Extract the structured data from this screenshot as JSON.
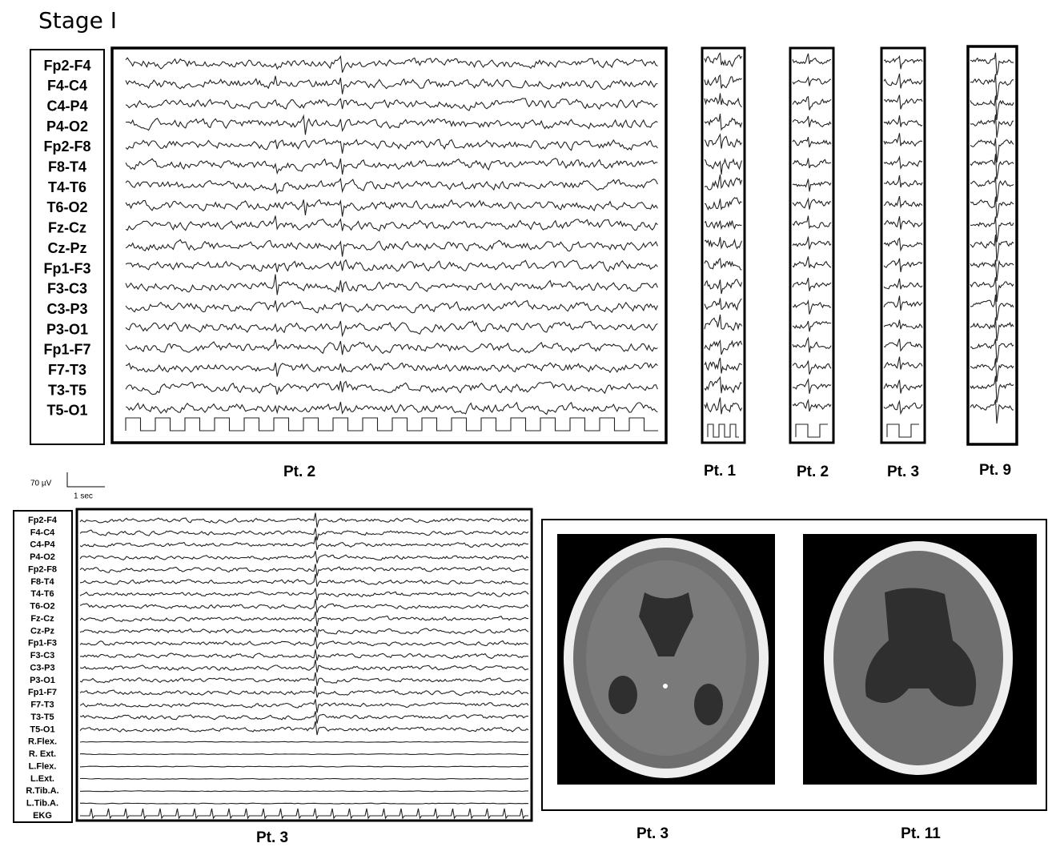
{
  "title": "Stage I",
  "top_panel": {
    "channels": [
      "Fp2-F4",
      "F4-C4",
      "C4-P4",
      "P4-O2",
      "Fp2-F8",
      "F8-T4",
      "T4-T6",
      "T6-O2",
      "Fz-Cz",
      "Cz-Pz",
      "Fp1-F3",
      "F3-C3",
      "C3-P3",
      "P3-O1",
      "Fp1-F7",
      "F7-T3",
      "T3-T5",
      "T5-O1"
    ],
    "caption": "Pt. 2"
  },
  "small_panels": [
    {
      "caption": "Pt. 1"
    },
    {
      "caption": "Pt. 2"
    },
    {
      "caption": "Pt. 3"
    },
    {
      "caption": "Pt. 9"
    }
  ],
  "scale_bar": {
    "amplitude": "70 µV",
    "time": "1 sec"
  },
  "bottom_panel": {
    "channels": [
      "Fp2-F4",
      "F4-C4",
      "C4-P4",
      "P4-O2",
      "Fp2-F8",
      "F8-T4",
      "T4-T6",
      "T6-O2",
      "Fz-Cz",
      "Cz-Pz",
      "Fp1-F3",
      "F3-C3",
      "C3-P3",
      "P3-O1",
      "Fp1-F7",
      "F7-T3",
      "T3-T5",
      "T5-O1",
      "R.Flex.",
      "R. Ext.",
      "L.Flex.",
      "L.Ext.",
      "R.Tib.A.",
      "L.Tib.A.",
      "EKG"
    ],
    "caption": "Pt. 3"
  },
  "ct_panel": {
    "images": [
      {
        "caption": "Pt. 3"
      },
      {
        "caption": "Pt. 11"
      }
    ]
  }
}
